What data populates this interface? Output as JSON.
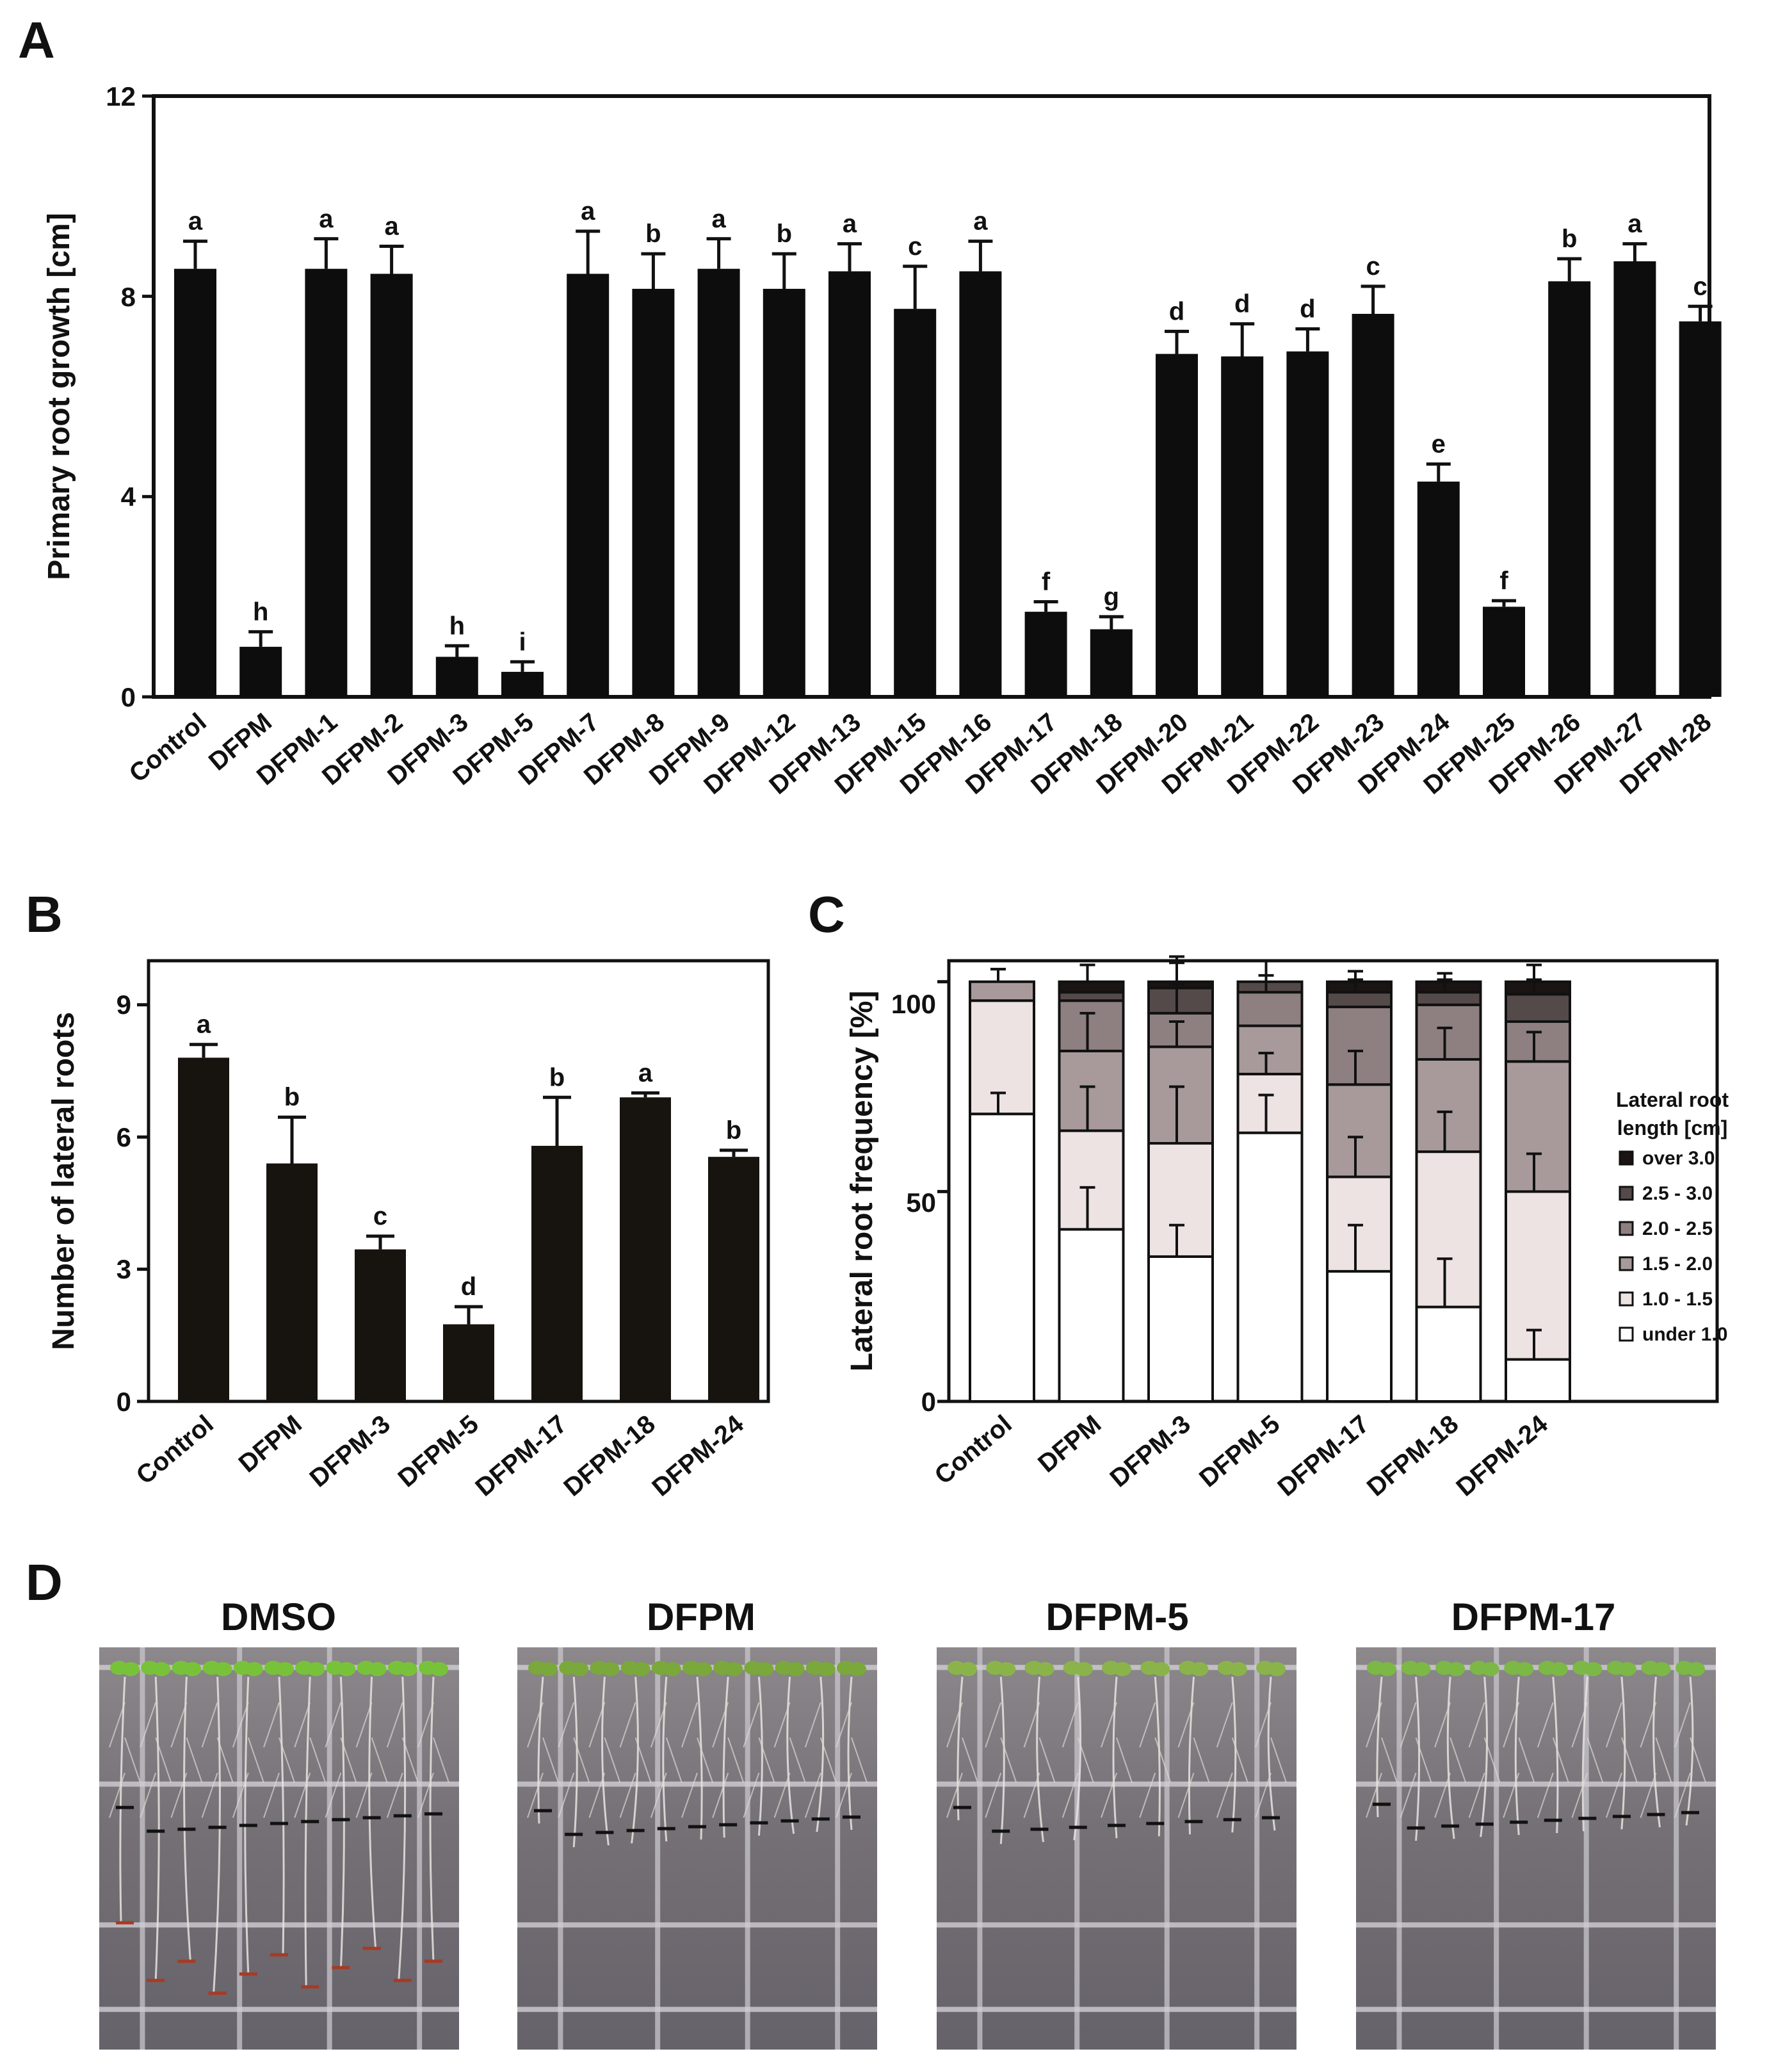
{
  "panels": {
    "a": "A",
    "b": "B",
    "c": "C",
    "d": "D"
  },
  "chart_data": [
    {
      "id": "A",
      "type": "bar",
      "ylabel": "Primary root growth [cm]",
      "ylim": [
        0,
        12
      ],
      "yticks": [
        "0",
        "4",
        "8",
        "12"
      ],
      "categories": [
        "Control",
        "DFPM",
        "DFPM-1",
        "DFPM-2",
        "DFPM-3",
        "DFPM-5",
        "DFPM-7",
        "DFPM-8",
        "DFPM-9",
        "DFPM-12",
        "DFPM-13",
        "DFPM-15",
        "DFPM-16",
        "DFPM-17",
        "DFPM-18",
        "DFPM-20",
        "DFPM-21",
        "DFPM-22",
        "DFPM-23",
        "DFPM-24",
        "DFPM-25",
        "DFPM-26",
        "DFPM-27",
        "DFPM-28"
      ],
      "values": [
        8.55,
        1.0,
        8.55,
        8.45,
        0.8,
        0.5,
        8.45,
        8.15,
        8.55,
        8.15,
        8.5,
        7.75,
        8.5,
        1.7,
        1.35,
        6.85,
        6.8,
        6.9,
        7.65,
        4.3,
        1.8,
        8.3,
        8.7,
        7.5
      ],
      "errors": [
        0.55,
        0.3,
        0.6,
        0.55,
        0.22,
        0.2,
        0.85,
        0.7,
        0.6,
        0.7,
        0.55,
        0.85,
        0.6,
        0.2,
        0.25,
        0.45,
        0.65,
        0.45,
        0.55,
        0.35,
        0.12,
        0.45,
        0.35,
        0.3
      ],
      "letters": [
        "a",
        "h",
        "a",
        "a",
        "h",
        "i",
        "a",
        "b",
        "a",
        "b",
        "a",
        "c",
        "a",
        "f",
        "g",
        "d",
        "d",
        "d",
        "c",
        "e",
        "f",
        "b",
        "a",
        "c"
      ],
      "colors": {
        "bar": "#0d0d0d"
      }
    },
    {
      "id": "B",
      "type": "bar",
      "ylabel": "Number of lateral roots",
      "ylim": [
        0,
        10
      ],
      "yticks": [
        "0",
        "3",
        "6",
        "9"
      ],
      "categories": [
        "Control",
        "DFPM",
        "DFPM-3",
        "DFPM-5",
        "DFPM-17",
        "DFPM-18",
        "DFPM-24"
      ],
      "values": [
        7.8,
        5.4,
        3.45,
        1.75,
        5.8,
        6.9,
        5.55
      ],
      "errors": [
        0.3,
        1.05,
        0.3,
        0.4,
        1.1,
        0.1,
        0.15
      ],
      "letters": [
        "a",
        "b",
        "c",
        "d",
        "b",
        "a",
        "b"
      ],
      "colors": {
        "bar": "#17130f"
      }
    },
    {
      "id": "C",
      "type": "bar",
      "stacked": true,
      "ylabel": "Lateral root frequency [%]",
      "ylim": [
        0,
        105
      ],
      "yticks": [
        "0",
        "50",
        "100"
      ],
      "categories": [
        "Control",
        "DFPM",
        "DFPM-3",
        "DFPM-5",
        "DFPM-17",
        "DFPM-18",
        "DFPM-24"
      ],
      "legend_title": [
        "Lateral root",
        "length [cm]"
      ],
      "series": [
        {
          "name": "under 1.0",
          "color": "#ffffff",
          "values": [
            68.5,
            41,
            34.5,
            64,
            31,
            22.5,
            10
          ],
          "errors": [
            5,
            10,
            7.5,
            9,
            11,
            11.5,
            7
          ]
        },
        {
          "name": "1.0 - 1.5",
          "color": "#ede3e3",
          "values": [
            27,
            23.5,
            27,
            14,
            22.5,
            37,
            40
          ],
          "errors": [
            0,
            10.5,
            13.5,
            5,
            9.5,
            9.5,
            9
          ]
        },
        {
          "name": "1.5 - 2.0",
          "color": "#a89a9a",
          "values": [
            4.5,
            19,
            23,
            11.5,
            22,
            22,
            31
          ],
          "errors": [
            3,
            9,
            6,
            0,
            8,
            7.5,
            7
          ]
        },
        {
          "name": "2.0 - 2.5",
          "color": "#8e8080",
          "values": [
            0,
            12,
            8,
            8,
            18.5,
            13,
            9.5
          ],
          "errors": [
            0,
            0,
            7,
            4,
            0,
            0,
            0
          ]
        },
        {
          "name": "2.5 - 3.0",
          "color": "#554a4a",
          "values": [
            0,
            2,
            6,
            2.5,
            3.5,
            3,
            6.5
          ],
          "errors": [
            0,
            0,
            6,
            0,
            3,
            3,
            3.5
          ]
        },
        {
          "name": "over 3.0",
          "color": "#1a1414",
          "values": [
            0,
            2.5,
            1.5,
            0,
            2.5,
            2.5,
            3
          ],
          "errors": [
            3,
            4,
            6,
            5,
            2.5,
            2,
            4
          ]
        }
      ]
    }
  ],
  "photos": {
    "titles": [
      "DMSO",
      "DFPM",
      "DFPM-5",
      "DFPM-17"
    ]
  }
}
